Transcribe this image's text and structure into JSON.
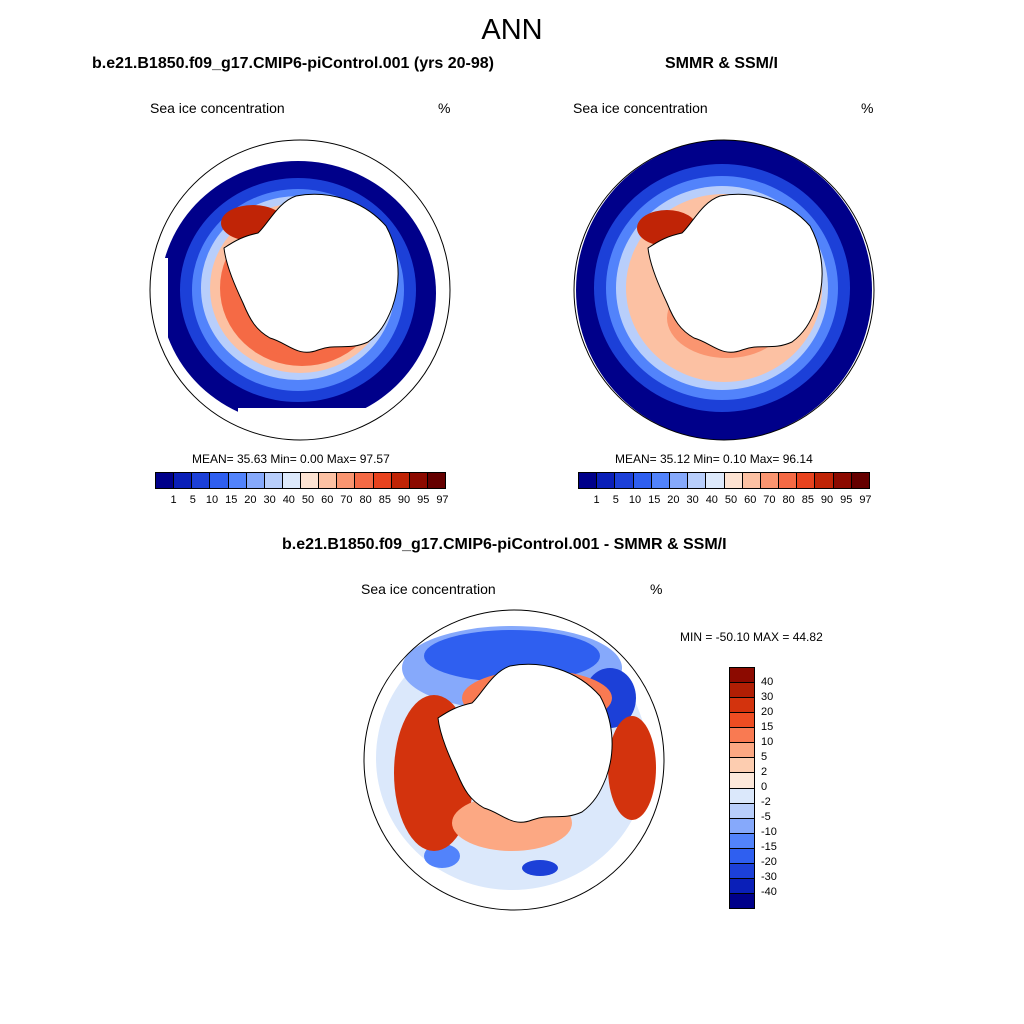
{
  "title": "ANN",
  "panels": [
    {
      "title": "b.e21.B1850.f09_g17.CMIP6-piControl.001 (yrs 20-98)",
      "left_label": "Sea ice concentration",
      "right_label": "%",
      "stats": "MEAN=  35.63  Min=   0.00  Max=  97.57"
    },
    {
      "title": "SMMR & SSM/I",
      "left_label": "Sea ice concentration",
      "right_label": "%",
      "stats": "MEAN=  35.12  Min=   0.10  Max=  96.14"
    },
    {
      "title": "b.e21.B1850.f09_g17.CMIP6-piControl.001 - SMMR & SSM/I",
      "left_label": "Sea ice concentration",
      "right_label": "%",
      "stats": "MIN = -50.10 MAX =  44.82"
    }
  ],
  "conc_legend": {
    "labels": [
      "1",
      "5",
      "10",
      "15",
      "20",
      "30",
      "40",
      "50",
      "60",
      "70",
      "80",
      "85",
      "90",
      "95",
      "97"
    ],
    "colors": [
      "#00008a",
      "#0a1fb8",
      "#1c40d8",
      "#2f5ff0",
      "#5283fb",
      "#86a9fb",
      "#b8cefb",
      "#dde9fb",
      "#fde3d2",
      "#fcc1a3",
      "#fa9570",
      "#f56a45",
      "#e8431e",
      "#c02406",
      "#8c0a00",
      "#650000"
    ]
  },
  "diff_legend": {
    "labels": [
      "40",
      "30",
      "20",
      "15",
      "10",
      "5",
      "2",
      "0",
      "-2",
      "-5",
      "-10",
      "-15",
      "-20",
      "-30",
      "-40"
    ],
    "colors": [
      "#8c0a00",
      "#b01e04",
      "#d3330d",
      "#ee4d22",
      "#f97a52",
      "#fca883",
      "#fdcdb0",
      "#fde8da",
      "#dbe8fb",
      "#b8cefb",
      "#86a9fb",
      "#5283fb",
      "#2f5ff0",
      "#1c40d8",
      "#0a1fb8",
      "#00008a"
    ]
  }
}
